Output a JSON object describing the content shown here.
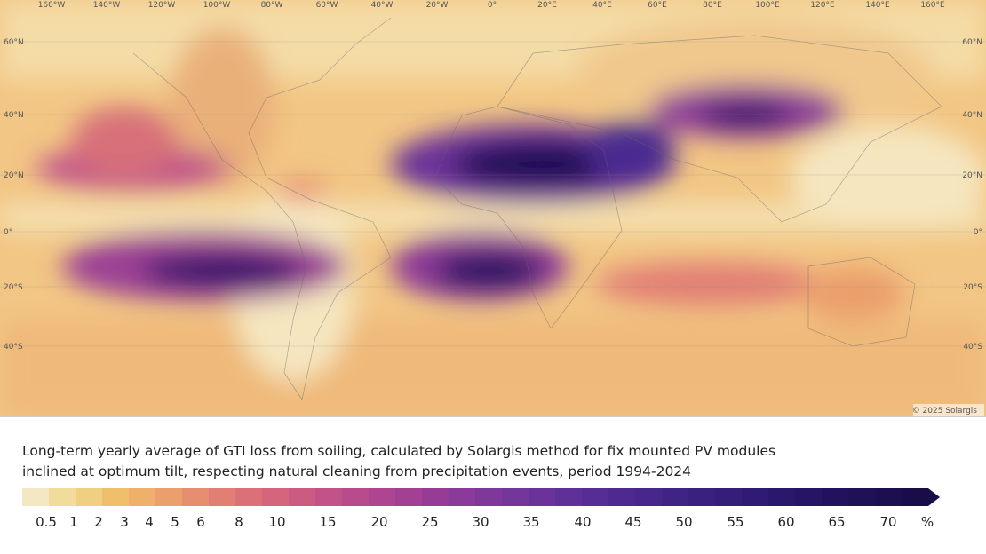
{
  "map": {
    "longitude_labels": [
      "160°W",
      "140°W",
      "120°W",
      "100°W",
      "80°W",
      "60°W",
      "40°W",
      "20°W",
      "0°",
      "20°E",
      "40°E",
      "60°E",
      "80°E",
      "100°E",
      "120°E",
      "140°E",
      "160°E"
    ],
    "latitude_labels": [
      "60°N",
      "40°N",
      "20°N",
      "0°",
      "20°S",
      "40°S"
    ],
    "copyright": "© 2025 Solargis"
  },
  "caption": [
    "Long-term yearly average of GTI loss from soiling, calculated by Solargis method for fix mounted PV modules",
    "inclined at optimum tilt, respecting natural cleaning from precipitation events, period 1994-2024"
  ],
  "legend": {
    "ticks": [
      0.5,
      1,
      2,
      3,
      4,
      5,
      6,
      8,
      10,
      15,
      20,
      25,
      30,
      35,
      40,
      45,
      50,
      55,
      60,
      65,
      70
    ],
    "unit": "%",
    "colors": [
      "#f3e7c4",
      "#f2dc9c",
      "#f1cf82",
      "#efbf6c",
      "#eeb06a",
      "#eb9f6c",
      "#e78e70",
      "#e27f74",
      "#dc7078",
      "#d5657d",
      "#cc5b82",
      "#c25287",
      "#b84b8c",
      "#ad4590",
      "#a24093",
      "#963c96",
      "#8a3a98",
      "#7e389a",
      "#73369a",
      "#693399",
      "#5f3097",
      "#562d94",
      "#4e2a90",
      "#47278b",
      "#402485",
      "#3a2180",
      "#341e7a",
      "#2f1b73",
      "#2a186c",
      "#261565",
      "#22125e",
      "#1f1057",
      "#1c0e50",
      "#190c49"
    ]
  }
}
